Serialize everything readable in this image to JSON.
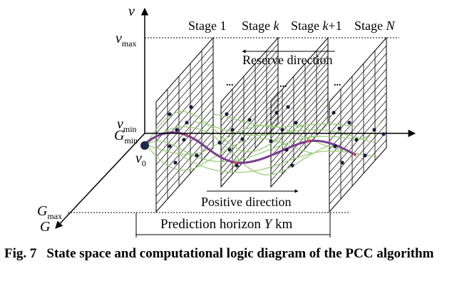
{
  "axes": {
    "v_label": "v",
    "v_max_label": "v",
    "v_max_sub": "max",
    "v_min_label": "v",
    "v_min_sub": "min",
    "g_min_label": "G",
    "g_min_sub": "min",
    "g_max_label": "G",
    "g_max_sub": "max",
    "g_label": "G",
    "v0_label": "v",
    "v0_sub": "0"
  },
  "stages": {
    "stage1": "Stage 1",
    "stage_k_prefix": "Stage ",
    "stage_k_var": "k",
    "stage_k1_prefix": "Stage ",
    "stage_k1_var": "k",
    "stage_k1_suffix": "+1",
    "stage_n_prefix": "Stage ",
    "stage_n_var": "N"
  },
  "directions": {
    "reserve": "Reserve direction",
    "positive": "Positive direction"
  },
  "horizon": {
    "prefix": "Prediction horizon ",
    "var": "Y",
    "suffix": " km"
  },
  "ellipsis": "...",
  "caption": {
    "fig_no": "Fig. 7",
    "text": "State space and computational logic diagram of the PCC algorithm"
  },
  "colors": {
    "grid": "#000000",
    "curves": "#9ccc7a",
    "optimal_path": "#7a3b8f",
    "nodes": "#1a1a3a",
    "markers": "#d9534f"
  }
}
